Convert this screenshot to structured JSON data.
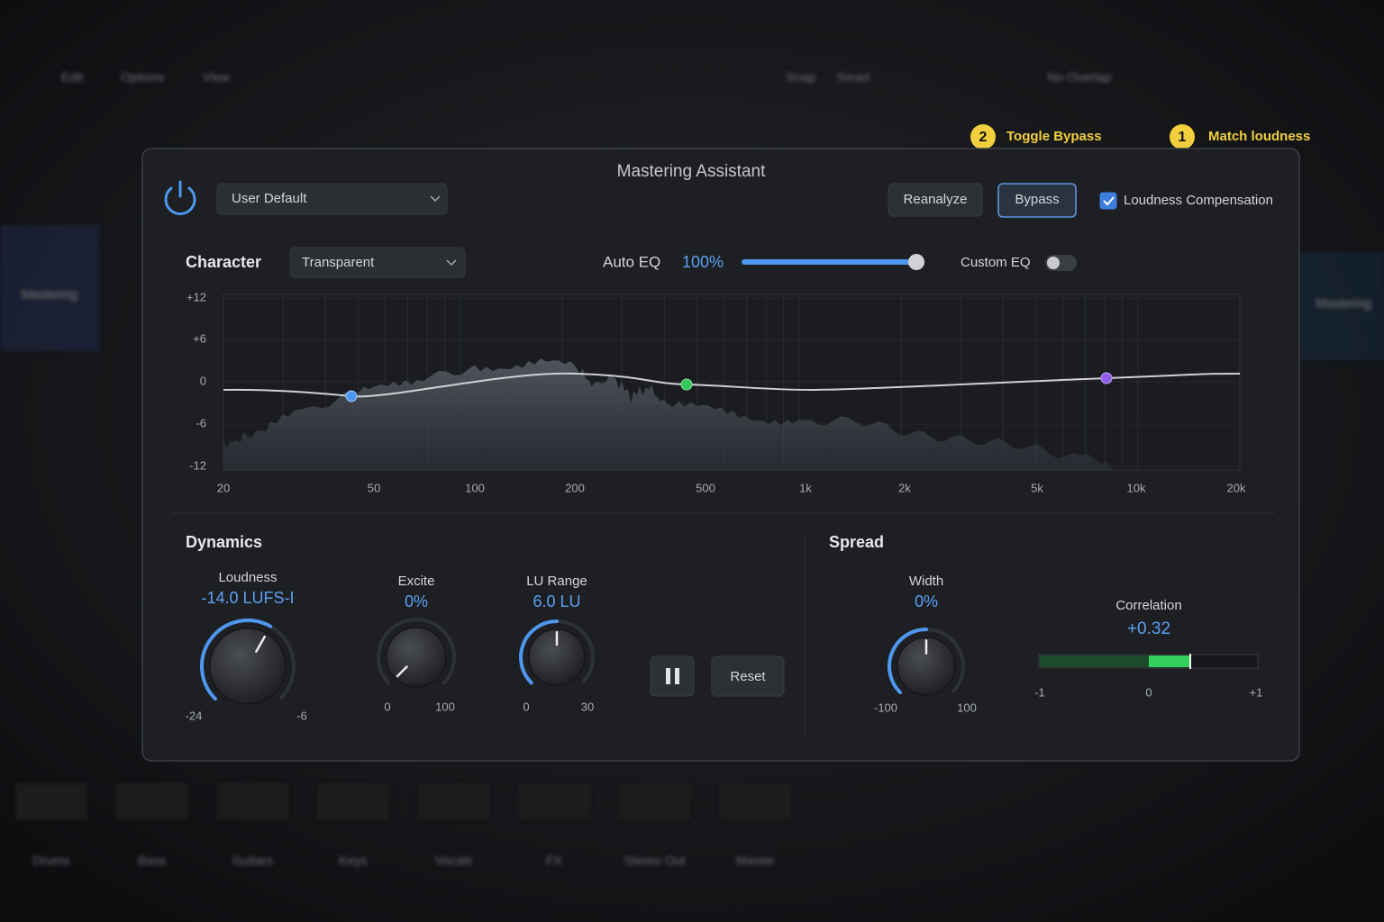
{
  "background": {
    "menu": [
      "Edit",
      "Options",
      "View",
      "Snap",
      "Smart",
      "No Overlap"
    ],
    "tracks": [
      "Drums",
      "Bass",
      "Guitars",
      "Keys",
      "Vocals",
      "FX",
      "Stereo Out",
      "Master"
    ],
    "side_labels": [
      "Mastering",
      "Mastering"
    ]
  },
  "annotations": [
    {
      "number": "2",
      "label": "Toggle Bypass"
    },
    {
      "number": "1",
      "label": "Match loudness"
    }
  ],
  "plugin": {
    "title": "Mastering Assistant",
    "preset": "User Default",
    "buttons": {
      "reanalyze": "Reanalyze",
      "bypass": "Bypass",
      "reset": "Reset"
    },
    "loudness_compensation": {
      "label": "Loudness Compensation",
      "checked": true
    },
    "character": {
      "label": "Character",
      "value": "Transparent"
    },
    "auto_eq": {
      "label": "Auto EQ",
      "value": "100%"
    },
    "custom_eq": {
      "label": "Custom EQ",
      "on": false
    },
    "eq_graph": {
      "y_labels": [
        "+12",
        "+6",
        "0",
        "-6",
        "-12"
      ],
      "x_labels": [
        "20",
        "50",
        "100",
        "200",
        "500",
        "1k",
        "2k",
        "5k",
        "10k",
        "20k"
      ]
    },
    "dynamics": {
      "title": "Dynamics",
      "knobs": [
        {
          "label": "Loudness",
          "value": "-14.0 LUFS-I",
          "min": "-24",
          "max": "-6"
        },
        {
          "label": "Excite",
          "value": "0%",
          "min": "0",
          "max": "100"
        },
        {
          "label": "LU Range",
          "value": "6.0 LU",
          "min": "0",
          "max": "30"
        }
      ]
    },
    "spread": {
      "title": "Spread",
      "width": {
        "label": "Width",
        "value": "0%",
        "min": "-100",
        "max": "100"
      },
      "correlation": {
        "label": "Correlation",
        "value": "+0.32",
        "scale": [
          "-1",
          "0",
          "+1"
        ]
      }
    }
  }
}
